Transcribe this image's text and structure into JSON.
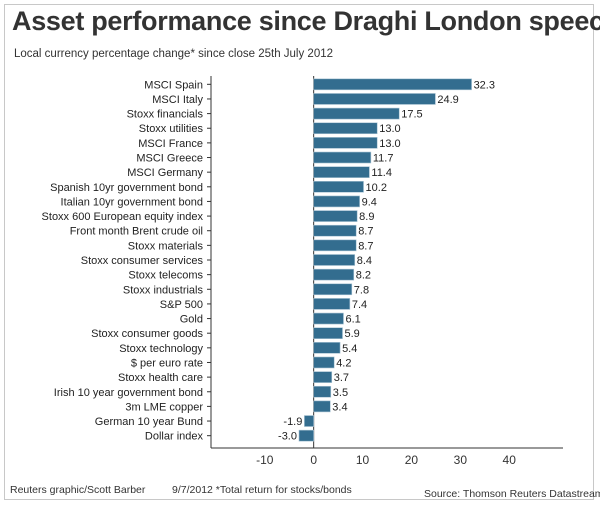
{
  "chart_data": {
    "type": "bar",
    "orientation": "horizontal",
    "title": "Asset performance since Draghi London speech",
    "subtitle": "Local currency percentage change* since close 25th July 2012",
    "categories": [
      "MSCI Spain",
      "MSCI Italy",
      "Stoxx financials",
      "Stoxx utilities",
      "MSCI France",
      "MSCI Greece",
      "MSCI Germany",
      "Spanish 10yr government bond",
      "Italian 10yr government bond",
      "Stoxx 600 European equity index",
      "Front month Brent crude oil",
      "Stoxx materials",
      "Stoxx consumer services",
      "Stoxx telecoms",
      "Stoxx industrials",
      "S&P 500",
      "Gold",
      "Stoxx consumer goods",
      "Stoxx technology",
      "$ per euro rate",
      "Stoxx health care",
      "Irish 10 year government bond",
      "3m LME copper",
      "German 10 year Bund",
      "Dollar index"
    ],
    "values": [
      32.3,
      24.9,
      17.5,
      13.0,
      13.0,
      11.7,
      11.4,
      10.2,
      9.4,
      8.9,
      8.7,
      8.7,
      8.4,
      8.2,
      7.8,
      7.4,
      6.1,
      5.9,
      5.4,
      4.2,
      3.7,
      3.5,
      3.4,
      -1.9,
      -3.0
    ],
    "value_labels": [
      "32.3",
      "24.9",
      "17.5",
      "13.0",
      "13.0",
      "11.7",
      "11.4",
      "10.2",
      "9.4",
      "8.9",
      "8.7",
      "8.7",
      "8.4",
      "8.2",
      "7.8",
      "7.4",
      "6.1",
      "5.9",
      "5.4",
      "4.2",
      "3.7",
      "3.5",
      "3.4",
      "-1.9",
      "-3.0"
    ],
    "xticks": [
      "-10",
      "0",
      "10",
      "20",
      "30",
      "40"
    ],
    "xtick_values": [
      -10,
      0,
      10,
      20,
      30,
      40
    ],
    "xlim": [
      -21,
      51
    ],
    "grid": false,
    "bar_color": "#336d8f"
  },
  "footer": {
    "credit": "Reuters graphic/Scott Barber",
    "note": "9/7/2012 *Total return for stocks/bonds",
    "source": "Source: Thomson Reuters Datastream"
  }
}
